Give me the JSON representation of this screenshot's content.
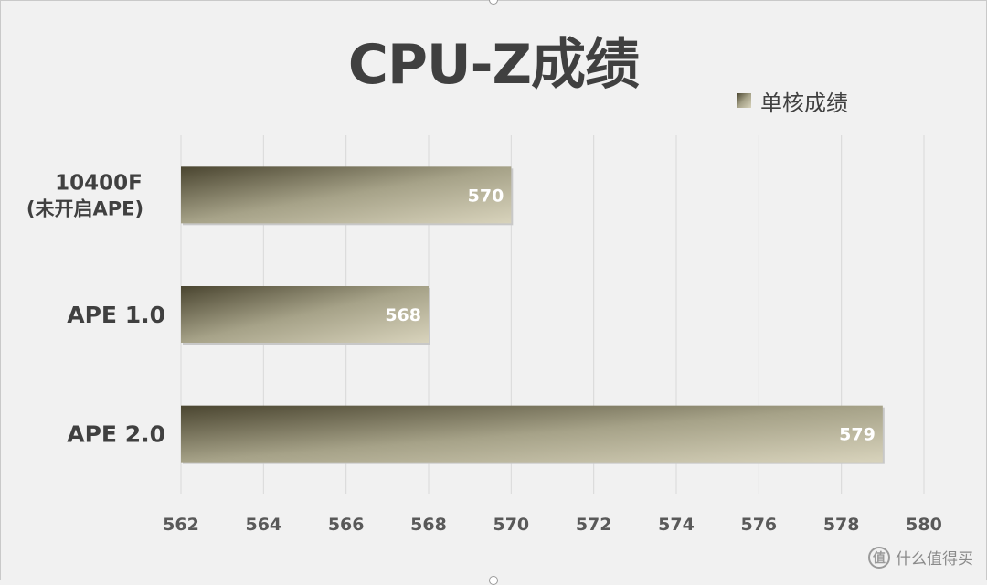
{
  "chart_data": {
    "type": "bar",
    "orientation": "horizontal",
    "title": "CPU-Z成绩",
    "categories": [
      {
        "line1": "10400F",
        "line2": "(未开启APE)"
      },
      {
        "line1": "APE 1.0",
        "line2": ""
      },
      {
        "line1": "APE 2.0",
        "line2": ""
      }
    ],
    "series": [
      {
        "name": "单核成绩",
        "values": [
          570,
          568,
          579
        ]
      }
    ],
    "data_labels": [
      "570",
      "568",
      "579"
    ],
    "xlim": [
      562,
      580
    ],
    "x_ticks": [
      "562",
      "564",
      "566",
      "568",
      "570",
      "572",
      "574",
      "576",
      "578",
      "580"
    ],
    "grid": "vertical",
    "legend_position": "top-right",
    "bar_gradient": [
      "#4a4530",
      "#a6a288",
      "#d8d3bc"
    ]
  },
  "watermark": {
    "icon_glyph": "值",
    "text": "什么值得买"
  }
}
